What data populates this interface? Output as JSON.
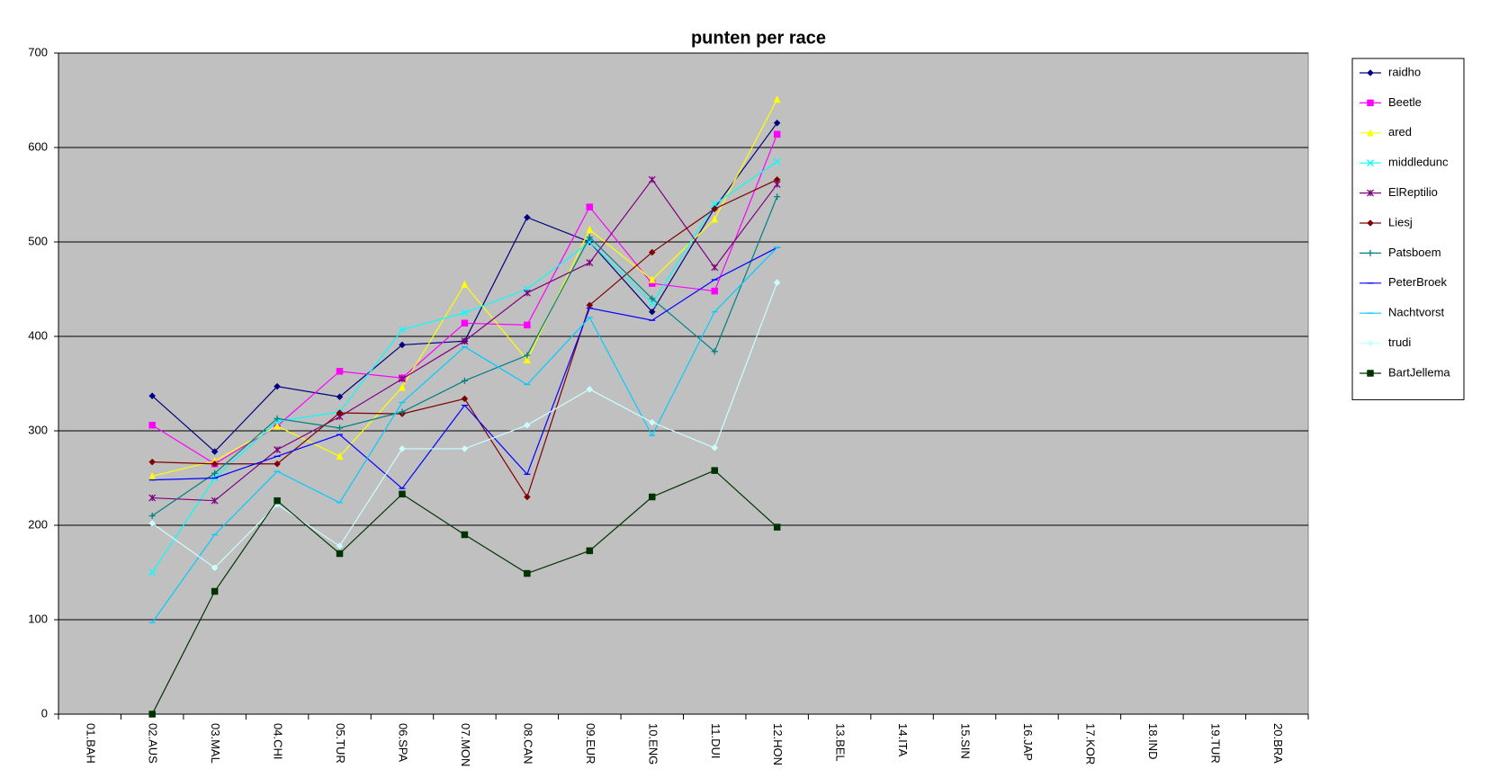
{
  "chart_data": {
    "type": "line",
    "title": "punten per race",
    "categories": [
      "01.BAH",
      "02.AUS",
      "03.MAL",
      "04.CHI",
      "05.TUR",
      "06.SPA",
      "07.MON",
      "08.CAN",
      "09.EUR",
      "10.ENG",
      "11.DUI",
      "12.HON",
      "13.BEL",
      "14.ITA",
      "15.SIN",
      "16.JAP",
      "17.KOR",
      "18.IND",
      "19.TUR",
      "20.BRA"
    ],
    "ylim": [
      0,
      700
    ],
    "yticks": [
      0,
      100,
      200,
      300,
      400,
      500,
      600,
      700
    ],
    "grid": true,
    "legend": "right",
    "series": [
      {
        "name": "raidho",
        "color": "#000080",
        "marker": "diamond",
        "values": [
          null,
          337,
          278,
          347,
          336,
          391,
          395,
          526,
          500,
          426,
          536,
          626,
          null,
          null,
          null,
          null,
          null,
          null,
          null,
          null
        ]
      },
      {
        "name": "Beetle",
        "color": "#ff00ff",
        "marker": "square",
        "values": [
          null,
          306,
          265,
          305,
          363,
          356,
          414,
          412,
          537,
          456,
          448,
          614,
          null,
          null,
          null,
          null,
          null,
          null,
          null,
          null
        ]
      },
      {
        "name": "ared",
        "color": "#ffff00",
        "marker": "triangle",
        "values": [
          null,
          252,
          268,
          305,
          273,
          346,
          455,
          375,
          513,
          460,
          524,
          651,
          null,
          null,
          null,
          null,
          null,
          null,
          null,
          null
        ]
      },
      {
        "name": "middledunc",
        "color": "#00ffff",
        "marker": "x",
        "values": [
          null,
          150,
          250,
          310,
          320,
          407,
          425,
          450,
          500,
          435,
          540,
          585,
          null,
          null,
          null,
          null,
          null,
          null,
          null,
          null
        ]
      },
      {
        "name": "ElReptilio",
        "color": "#800080",
        "marker": "star",
        "values": [
          null,
          229,
          226,
          280,
          315,
          355,
          395,
          446,
          478,
          566,
          473,
          561,
          null,
          null,
          null,
          null,
          null,
          null,
          null,
          null
        ]
      },
      {
        "name": "Liesj",
        "color": "#800000",
        "marker": "diamond",
        "values": [
          null,
          267,
          265,
          265,
          319,
          318,
          334,
          230,
          433,
          489,
          535,
          566,
          null,
          null,
          null,
          null,
          null,
          null,
          null,
          null
        ]
      },
      {
        "name": "Patsboem",
        "color": "#008080",
        "marker": "plus",
        "values": [
          null,
          210,
          255,
          313,
          303,
          320,
          353,
          380,
          505,
          440,
          384,
          548,
          null,
          null,
          null,
          null,
          null,
          null,
          null,
          null
        ]
      },
      {
        "name": "PeterBroek",
        "color": "#0000ff",
        "marker": "dash",
        "values": [
          null,
          248,
          250,
          273,
          296,
          239,
          327,
          254,
          430,
          417,
          460,
          494,
          null,
          null,
          null,
          null,
          null,
          null,
          null,
          null
        ]
      },
      {
        "name": "Nachtvorst",
        "color": "#00ccff",
        "marker": "dash",
        "values": [
          null,
          97,
          190,
          257,
          224,
          330,
          389,
          349,
          420,
          295,
          426,
          494,
          null,
          null,
          null,
          null,
          null,
          null,
          null,
          null
        ]
      },
      {
        "name": "trudi",
        "color": "#ccffff",
        "marker": "diamond",
        "values": [
          null,
          202,
          155,
          222,
          178,
          281,
          281,
          306,
          344,
          309,
          282,
          457,
          null,
          null,
          null,
          null,
          null,
          null,
          null,
          null
        ]
      },
      {
        "name": "BartJellema",
        "color": "#003300",
        "marker": "square",
        "values": [
          null,
          0,
          130,
          226,
          170,
          233,
          190,
          149,
          173,
          230,
          258,
          198,
          null,
          null,
          null,
          null,
          null,
          null,
          null,
          null
        ]
      }
    ]
  }
}
